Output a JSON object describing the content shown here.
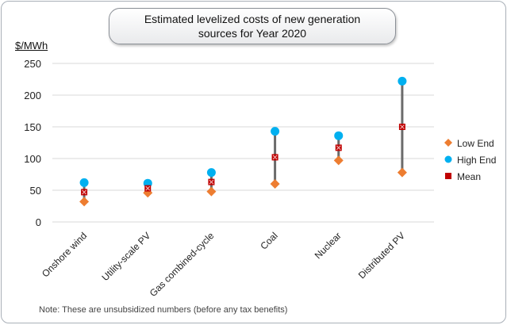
{
  "chart_data": {
    "type": "scatter",
    "title": "Estimated levelized costs of new generation sources for Year 2020",
    "ylabel": "$/MWh",
    "xlabel": "",
    "note": "Note: These are unsubsidized numbers (before any tax benefits)",
    "categories": [
      "Onshore wind",
      "Utility-scale PV",
      "Gas combined-cycle",
      "Coal",
      "Nuclear",
      "Distributed PV"
    ],
    "ylim": [
      0,
      250
    ],
    "yticks": [
      0,
      50,
      100,
      150,
      200,
      250
    ],
    "grid": true,
    "legend_position": "right",
    "series": [
      {
        "name": "Low End",
        "color": "#ed7d31",
        "marker": "diamond",
        "values": [
          32,
          46,
          48,
          60,
          97,
          78
        ]
      },
      {
        "name": "High End",
        "color": "#00b0f0",
        "marker": "circle",
        "values": [
          62,
          61,
          78,
          143,
          136,
          222
        ]
      },
      {
        "name": "Mean",
        "color": "#c00000",
        "marker": "square-x",
        "values": [
          47,
          53,
          63,
          102,
          117,
          150
        ]
      }
    ],
    "range_line_color": "#6b6b6b"
  }
}
